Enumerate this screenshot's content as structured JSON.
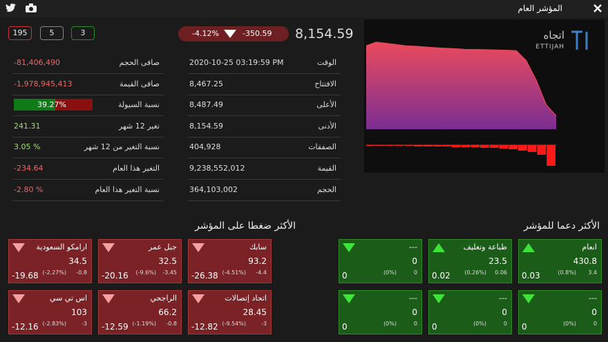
{
  "header": {
    "title": "المؤشر العام"
  },
  "badges": [
    "195",
    "5",
    "3"
  ],
  "index": {
    "value": "8,154.59",
    "change": "-350.59",
    "change_pct": "-4.12%"
  },
  "stats_left": [
    {
      "label": "صافى الحجم",
      "value": "-81,406,490"
    },
    {
      "label": "صافى القيمة",
      "value": "-1,978,945,413"
    },
    {
      "label": "نسبة السيولة",
      "value": "39.27%"
    },
    {
      "label": "تغير 12 شهر",
      "value": "241.31"
    },
    {
      "label": "نسبة التغير من 12 شهر",
      "value": "3.05 %"
    },
    {
      "label": "التغير هذا العام",
      "value": "-234.64"
    },
    {
      "label": "نسبة التغير هذا العام",
      "value": "-2.80 %"
    }
  ],
  "stats_right": [
    {
      "label": "الوقت",
      "value": "2020-10-25 03:19:59 PM"
    },
    {
      "label": "الافتتاح",
      "value": "8,467.25"
    },
    {
      "label": "الأعلى",
      "value": "8,487.49"
    },
    {
      "label": "الأدنى",
      "value": "8,154.59"
    },
    {
      "label": "الصفقات",
      "value": "404,928"
    },
    {
      "label": "القيمة",
      "value": "9,238,552,012"
    },
    {
      "label": "الحجم",
      "value": "364,103,002"
    }
  ],
  "logo": {
    "arabic": "اتجاه",
    "latin": "ETTIJAH"
  },
  "pressure": {
    "title": "الأكثر ضغطا على المؤشر",
    "cards": [
      {
        "name": "سابك",
        "price": "93.2",
        "change": "-4.4",
        "pct": "(-4.51%)",
        "impact": "-26.38"
      },
      {
        "name": "جبل عمر",
        "price": "32.5",
        "change": "-3.45",
        "pct": "(-9.6%)",
        "impact": "-20.16"
      },
      {
        "name": "ارامكو السعودية",
        "price": "34.5",
        "change": "-0.8",
        "pct": "(-2.27%)",
        "impact": "-19.68"
      },
      {
        "name": "اتحاد إتصالات",
        "price": "28.45",
        "change": "-3",
        "pct": "(-9.54%)",
        "impact": "-12.82"
      },
      {
        "name": "الراجحي",
        "price": "66.2",
        "change": "-0.8",
        "pct": "(-1.19%)",
        "impact": "-12.59"
      },
      {
        "name": "اس تي سي",
        "price": "103",
        "change": "-3",
        "pct": "(-2.83%)",
        "impact": "-12.16"
      }
    ]
  },
  "support": {
    "title": "الأكثر دعما للمؤشر",
    "cards": [
      {
        "name": "انعام",
        "price": "430.8",
        "change": "3.4",
        "pct": "(0.8%)",
        "impact": "0.03"
      },
      {
        "name": "طباعة وتغليف",
        "price": "23.5",
        "change": "0.06",
        "pct": "(0.26%)",
        "impact": "0.02"
      },
      {
        "name": "---",
        "price": "0",
        "change": "0",
        "pct": "(0%)",
        "impact": "0"
      },
      {
        "name": "---",
        "price": "0",
        "change": "0",
        "pct": "(0%)",
        "impact": "0"
      },
      {
        "name": "---",
        "price": "0",
        "change": "0",
        "pct": "(0%)",
        "impact": "0"
      },
      {
        "name": "---",
        "price": "0",
        "change": "0",
        "pct": "(0%)",
        "impact": "0"
      }
    ]
  },
  "chart_data": [
    {
      "type": "area",
      "values": [
        8440,
        8455,
        8450,
        8445,
        8440,
        8438,
        8435,
        8432,
        8430,
        8428,
        8425,
        8425,
        8424,
        8423,
        8422,
        8420,
        8380,
        8300,
        8200,
        8155
      ],
      "ylim": [
        8100,
        8500
      ],
      "color": "#e8475a"
    },
    {
      "type": "bar",
      "values": [
        0,
        -1,
        -1,
        -1,
        -1,
        -2,
        -2,
        -2,
        -2,
        -3,
        -3,
        -3,
        -4,
        -4,
        -5,
        -6,
        -8,
        -10,
        -14,
        -30
      ],
      "ylim": [
        -30,
        0
      ],
      "color": "#ff1a1a"
    }
  ]
}
